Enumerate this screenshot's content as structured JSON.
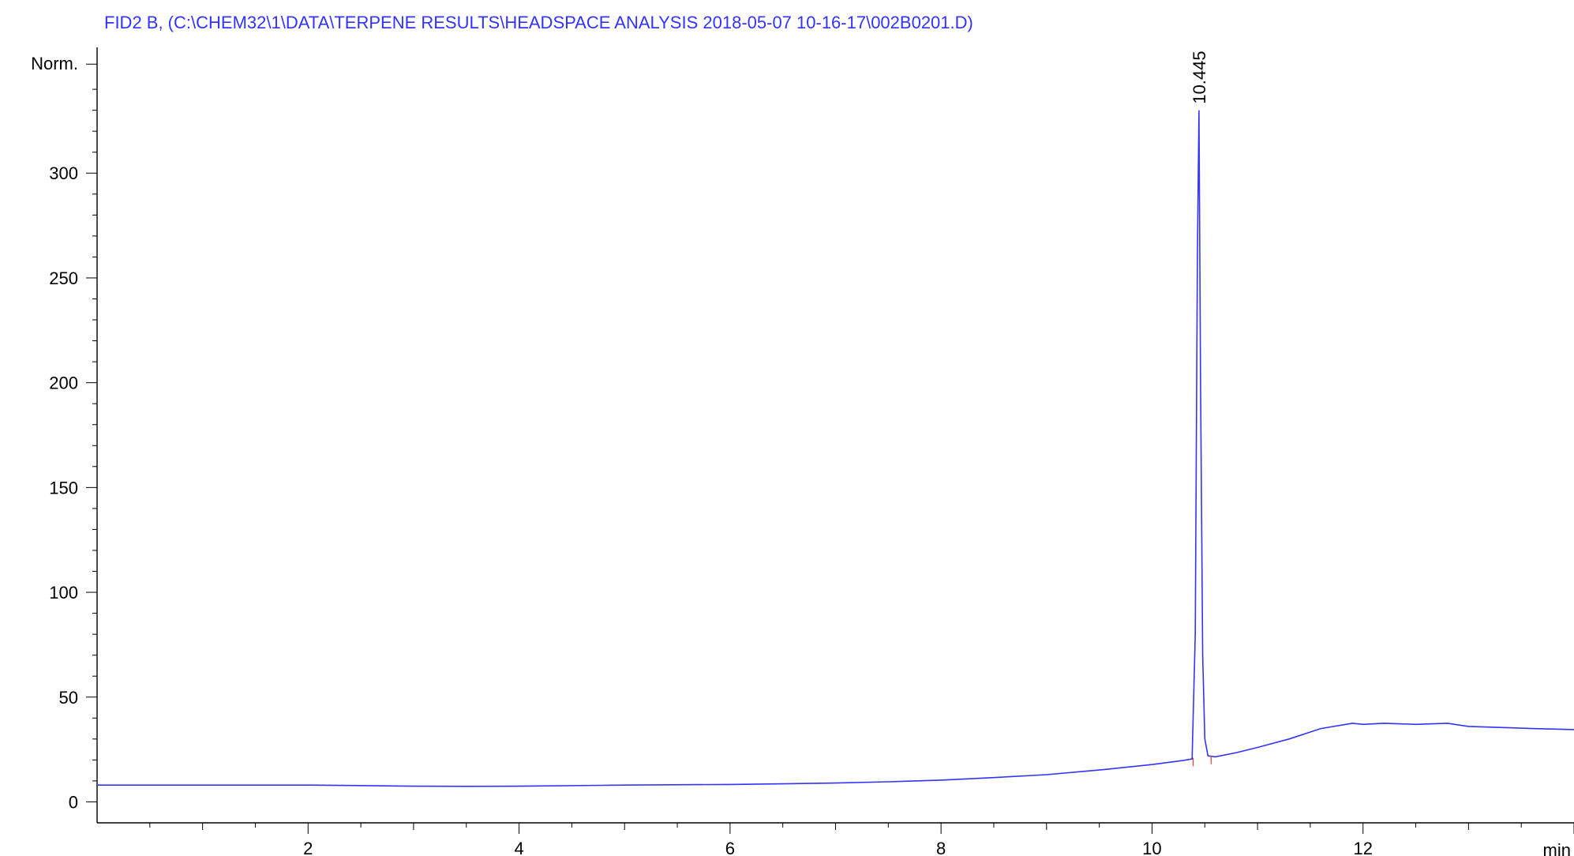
{
  "chart_data": {
    "type": "line",
    "title": "FID2 B,  (C:\\CHEM32\\1\\DATA\\TERPENE RESULTS\\HEADSPACE ANALYSIS 2018-05-07 10-16-17\\002B0201.D)",
    "ylabel": "Norm.",
    "xunit": "min",
    "xlim": [
      0,
      14
    ],
    "ylim": [
      -10,
      360
    ],
    "xticks": [
      2,
      4,
      6,
      8,
      10,
      12
    ],
    "yticks": [
      0,
      50,
      100,
      150,
      200,
      250,
      300
    ],
    "grid": false,
    "series": [
      {
        "color": "#3333ff",
        "x": [
          0,
          1,
          2,
          2.5,
          3,
          3.5,
          4,
          5,
          6,
          6.5,
          7,
          7.5,
          8,
          8.5,
          9,
          9.5,
          10,
          10.3,
          10.38,
          10.41,
          10.43,
          10.445,
          10.46,
          10.48,
          10.5,
          10.53,
          10.6,
          10.8,
          11,
          11.3,
          11.6,
          11.9,
          12,
          12.2,
          12.5,
          12.8,
          13,
          13.3,
          13.6,
          14
        ],
        "y": [
          8,
          8,
          8,
          7.8,
          7.5,
          7.4,
          7.5,
          8,
          8.3,
          8.6,
          9,
          9.6,
          10.4,
          11.6,
          13,
          15.2,
          17.8,
          19.8,
          20.5,
          80,
          260,
          330,
          200,
          70,
          30,
          22,
          21.5,
          23.5,
          26,
          30,
          35,
          37.5,
          37,
          37.5,
          37,
          37.5,
          36,
          35.5,
          35,
          34.5
        ]
      }
    ],
    "annotations": [
      {
        "text": "10.445",
        "x": 10.445,
        "y": 333
      }
    ]
  }
}
